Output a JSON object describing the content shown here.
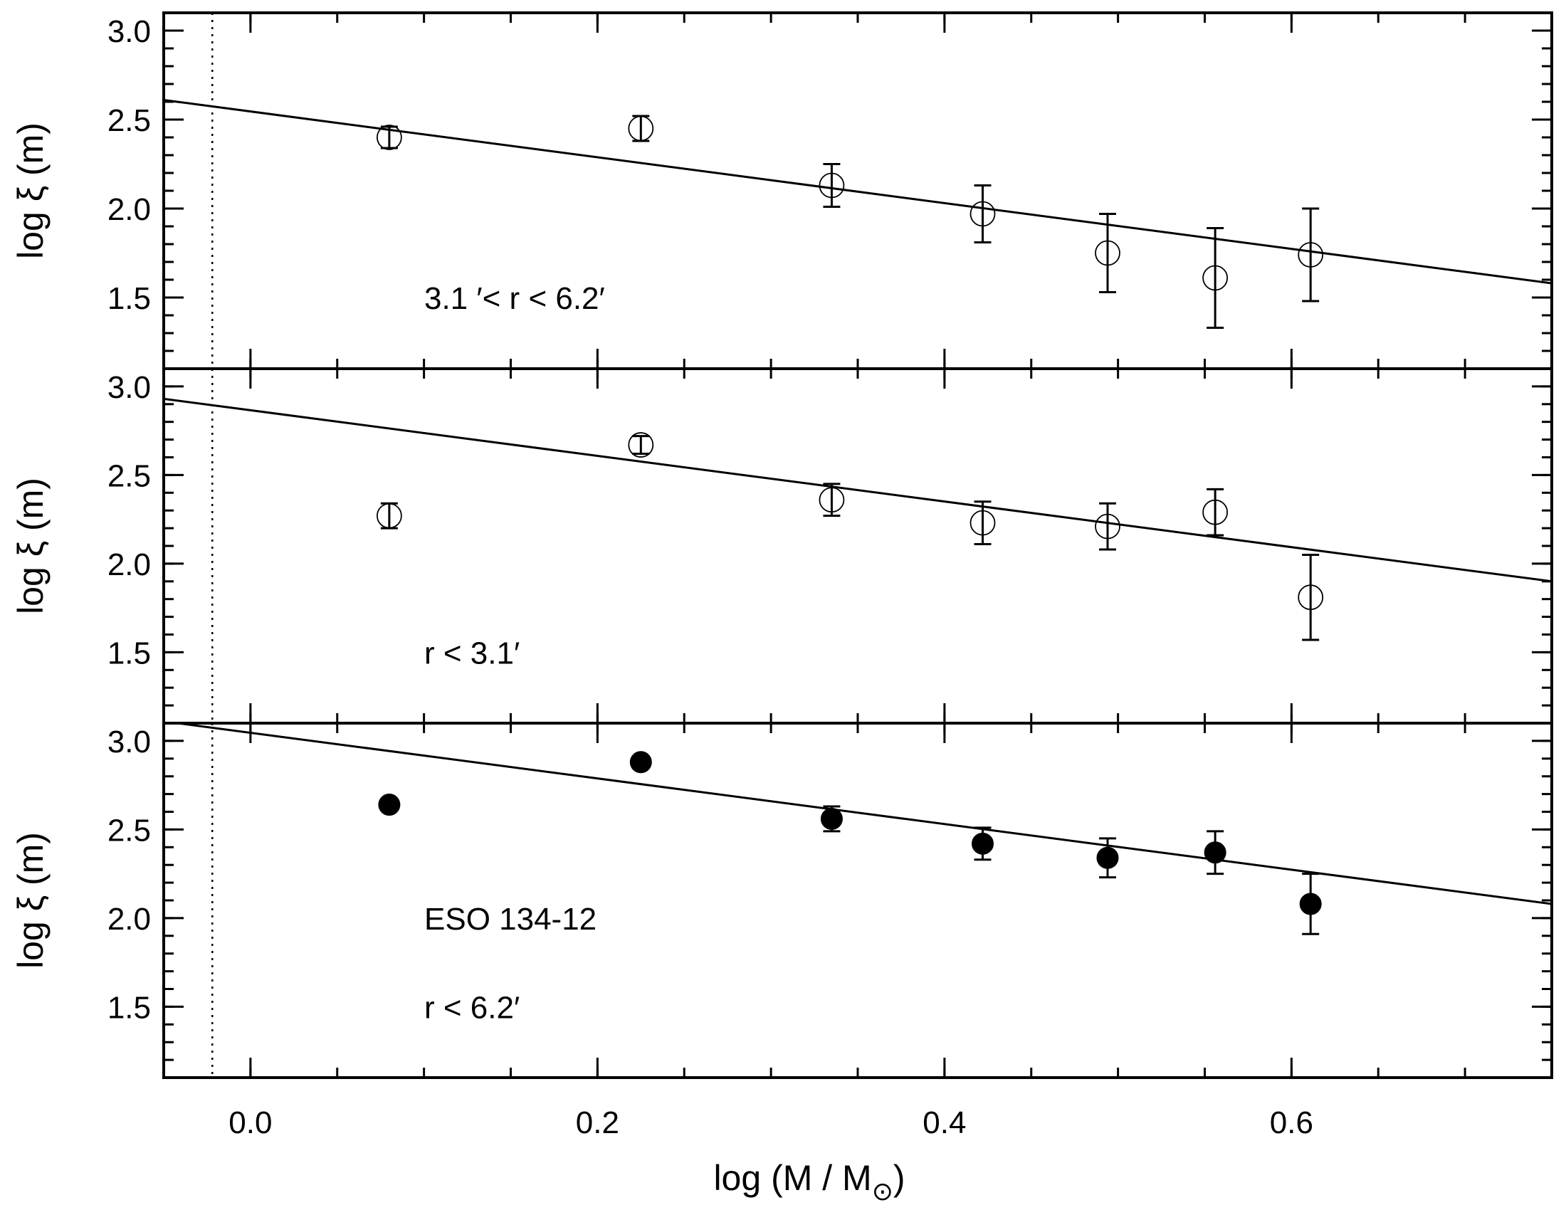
{
  "chart_data": {
    "type": "scatter",
    "xlabel": "log (M / M⊙)",
    "xlabel_main": "log (M / M",
    "xlabel_sub": "⊙",
    "xlabel_close": ")",
    "xlim": [
      -0.05,
      0.75
    ],
    "xticks": [
      0.0,
      0.2,
      0.4,
      0.6
    ],
    "xtick_labels": [
      "0.0",
      "0.2",
      "0.4",
      "0.6"
    ],
    "x_minor_step": 0.05,
    "dotted_vline_x": -0.022,
    "panels": [
      {
        "ylabel": "log ξ (m)",
        "ylim": [
          1.1,
          3.1
        ],
        "yticks": [
          1.5,
          2.0,
          2.5,
          3.0
        ],
        "ytick_labels": [
          "1.5",
          "2.0",
          "2.5",
          "3.0"
        ],
        "y_minor_step": 0.1,
        "marker": "open",
        "annotations": [
          "3.1 ′<  r  <  6.2′"
        ],
        "fit_line": {
          "x": [
            -0.05,
            0.75
          ],
          "y": [
            2.61,
            1.58
          ]
        },
        "points": [
          {
            "x": 0.08,
            "y": 2.4,
            "err": 0.06
          },
          {
            "x": 0.225,
            "y": 2.45,
            "err": 0.07
          },
          {
            "x": 0.335,
            "y": 2.13,
            "err": 0.12
          },
          {
            "x": 0.422,
            "y": 1.97,
            "err": 0.16
          },
          {
            "x": 0.494,
            "y": 1.75,
            "err": 0.22
          },
          {
            "x": 0.556,
            "y": 1.61,
            "err": 0.28
          },
          {
            "x": 0.611,
            "y": 1.74,
            "err": 0.26
          }
        ]
      },
      {
        "ylabel": "log ξ (m)",
        "ylim": [
          1.1,
          3.1
        ],
        "yticks": [
          1.5,
          2.0,
          2.5,
          3.0
        ],
        "ytick_labels": [
          "1.5",
          "2.0",
          "2.5",
          "3.0"
        ],
        "y_minor_step": 0.1,
        "marker": "open",
        "annotations": [
          "r  <  3.1′"
        ],
        "fit_line": {
          "x": [
            -0.05,
            0.75
          ],
          "y": [
            2.93,
            1.9
          ]
        },
        "points": [
          {
            "x": 0.08,
            "y": 2.27,
            "err": 0.07
          },
          {
            "x": 0.225,
            "y": 2.67,
            "err": 0.05
          },
          {
            "x": 0.335,
            "y": 2.36,
            "err": 0.09
          },
          {
            "x": 0.422,
            "y": 2.23,
            "err": 0.12
          },
          {
            "x": 0.494,
            "y": 2.21,
            "err": 0.13
          },
          {
            "x": 0.556,
            "y": 2.29,
            "err": 0.13
          },
          {
            "x": 0.611,
            "y": 1.81,
            "err": 0.24
          }
        ]
      },
      {
        "ylabel": "log ξ (m)",
        "ylim": [
          1.1,
          3.1
        ],
        "yticks": [
          1.5,
          2.0,
          2.5,
          3.0
        ],
        "ytick_labels": [
          "1.5",
          "2.0",
          "2.5",
          "3.0"
        ],
        "y_minor_step": 0.1,
        "marker": "filled",
        "annotations": [
          "ESO 134-12",
          "r  <  6.2′"
        ],
        "fit_line": {
          "x": [
            -0.05,
            0.75
          ],
          "y": [
            3.11,
            2.08
          ]
        },
        "points": [
          {
            "x": 0.08,
            "y": 2.64,
            "err": 0.0
          },
          {
            "x": 0.225,
            "y": 2.88,
            "err": 0.0
          },
          {
            "x": 0.335,
            "y": 2.56,
            "err": 0.07
          },
          {
            "x": 0.422,
            "y": 2.42,
            "err": 0.09
          },
          {
            "x": 0.494,
            "y": 2.34,
            "err": 0.11
          },
          {
            "x": 0.556,
            "y": 2.37,
            "err": 0.12
          },
          {
            "x": 0.611,
            "y": 2.08,
            "err": 0.17
          }
        ]
      }
    ]
  }
}
